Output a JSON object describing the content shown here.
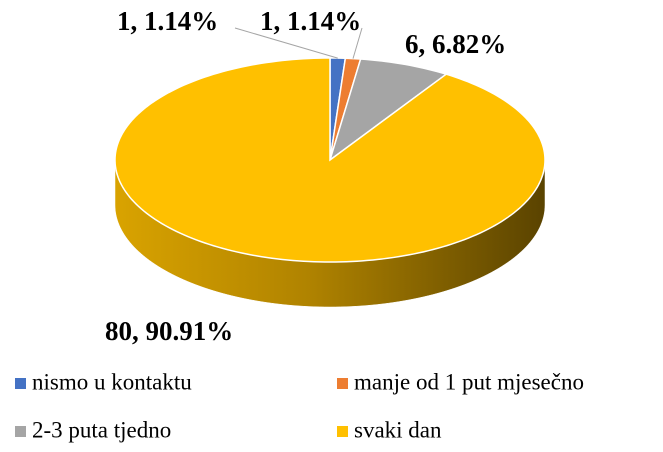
{
  "chart_data": {
    "type": "pie",
    "categories": [
      "nismo u kontaktu",
      "manje od 1 put mjesečno",
      "2-3 puta tjedno",
      "svaki dan"
    ],
    "values": [
      1,
      1,
      6,
      80
    ],
    "value_labels": [
      "1, 1.14%",
      "1, 1.14%",
      "6, 6.82%",
      "80, 90.91%"
    ],
    "colors": [
      "#4472c4",
      "#ed7d31",
      "#a5a5a5",
      "#ffc000"
    ],
    "legend": "bottom"
  }
}
